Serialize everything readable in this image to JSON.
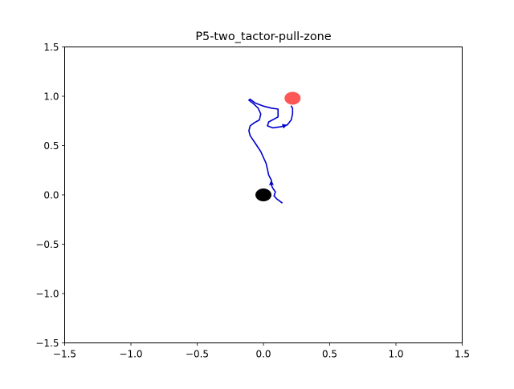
{
  "chart_data": {
    "type": "line",
    "title": "P5-two_tactor-pull-zone",
    "xlabel": "",
    "ylabel": "",
    "xlim": [
      -1.5,
      1.5
    ],
    "ylim": [
      -1.5,
      1.5
    ],
    "xticks": [
      -1.5,
      -1.0,
      -0.5,
      0.0,
      0.5,
      1.0,
      1.5
    ],
    "xtick_labels": [
      "−1.5",
      "−1.0",
      "−0.5",
      "0.0",
      "0.5",
      "1.0",
      "1.5"
    ],
    "yticks": [
      -1.5,
      -1.0,
      -0.5,
      0.0,
      0.5,
      1.0,
      1.5
    ],
    "ytick_labels": [
      "−1.5",
      "−1.0",
      "−0.5",
      "0.0",
      "0.5",
      "1.0",
      "1.5"
    ],
    "grid": false,
    "series": [
      {
        "color": "#0000cc",
        "x": [
          0.14,
          0.1,
          0.08,
          0.09,
          0.07,
          0.06,
          0.06,
          0.04,
          0.03,
          0.02,
          0.0,
          -0.02,
          -0.04,
          -0.06,
          -0.08,
          -0.1,
          -0.11,
          -0.1,
          -0.07,
          -0.03,
          -0.02,
          -0.04,
          -0.08,
          -0.11,
          -0.1,
          -0.06,
          0.0,
          0.06,
          0.11,
          0.11,
          0.04,
          0.03,
          0.07,
          0.13,
          0.18,
          0.21,
          0.22,
          0.22,
          0.21
        ],
        "y": [
          -0.08,
          -0.04,
          -0.01,
          0.03,
          0.07,
          0.1,
          0.15,
          0.2,
          0.26,
          0.32,
          0.38,
          0.44,
          0.48,
          0.52,
          0.56,
          0.6,
          0.65,
          0.7,
          0.73,
          0.76,
          0.82,
          0.88,
          0.93,
          0.96,
          0.97,
          0.93,
          0.9,
          0.88,
          0.87,
          0.79,
          0.74,
          0.7,
          0.68,
          0.69,
          0.71,
          0.76,
          0.82,
          0.88,
          0.9
        ],
        "arrows_at": [
          5,
          33
        ]
      }
    ],
    "markers": [
      {
        "x": 0.0,
        "y": 0.0,
        "color": "#000000"
      },
      {
        "x": 0.22,
        "y": 0.98,
        "color": "#ff4444"
      }
    ]
  }
}
